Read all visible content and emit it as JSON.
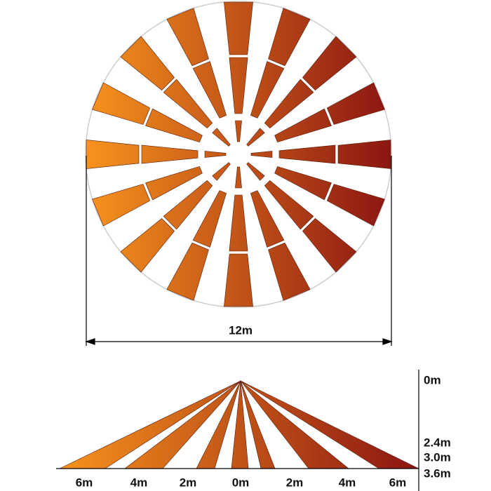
{
  "top_view": {
    "diameter_label": "12m"
  },
  "side_view": {
    "distance_labels": [
      "6m",
      "4m",
      "2m",
      "0m",
      "2m",
      "4m",
      "6m"
    ],
    "height_labels": [
      "0m",
      "2.4m",
      "3.0m",
      "3.6m"
    ]
  }
}
